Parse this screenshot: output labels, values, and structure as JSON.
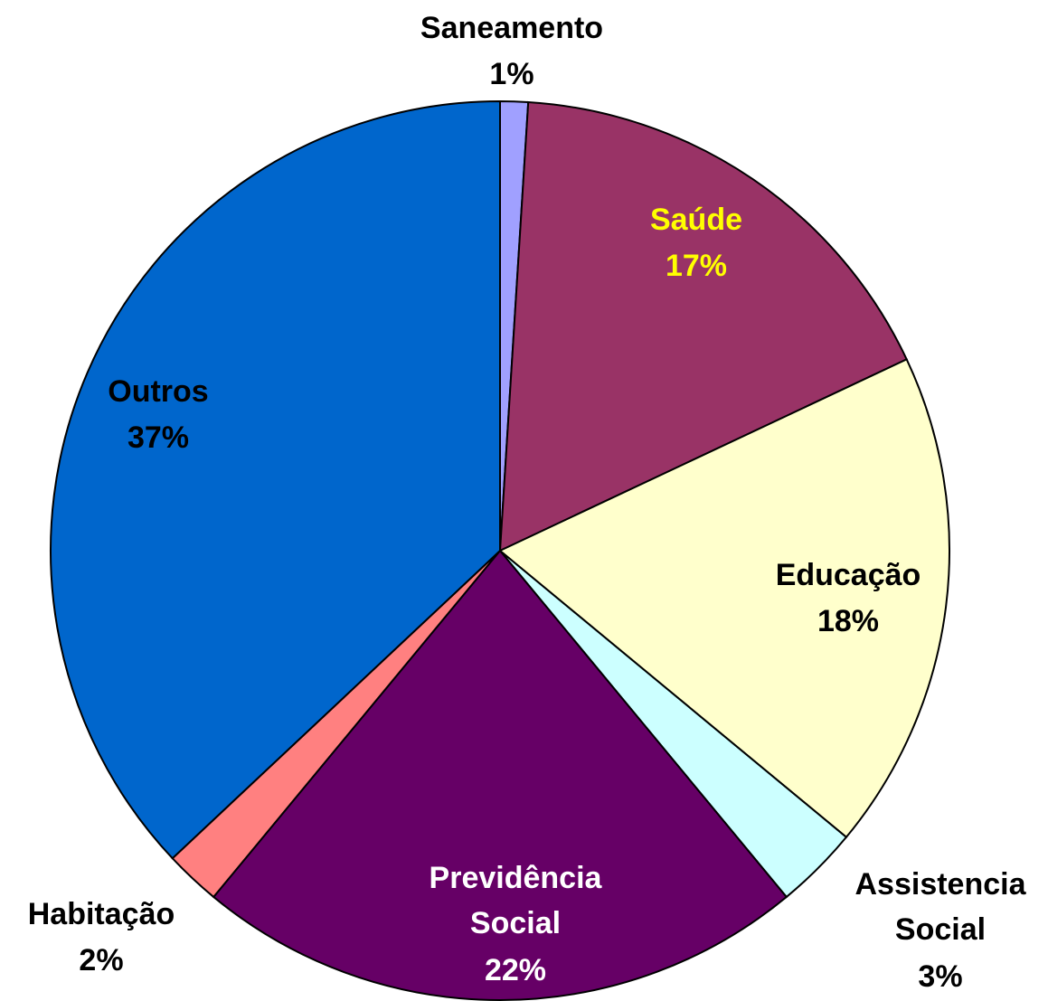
{
  "chart_data": {
    "type": "pie",
    "categories": [
      "Saneamento",
      "Saúde",
      "Educação",
      "Assistencia Social",
      "Previdência Social",
      "Habitação",
      "Outros"
    ],
    "values": [
      1,
      17,
      18,
      3,
      22,
      2,
      37
    ],
    "value_labels": [
      "1%",
      "17%",
      "18%",
      "3%",
      "22%",
      "2%",
      "37%"
    ],
    "colors": [
      "#a0a0ff",
      "#993366",
      "#ffffcc",
      "#ccffff",
      "#660066",
      "#ff8080",
      "#0066cc"
    ],
    "label_colors": [
      "#000000",
      "#ffff00",
      "#000000",
      "#000000",
      "#ffffff",
      "#000000",
      "#000000"
    ]
  }
}
